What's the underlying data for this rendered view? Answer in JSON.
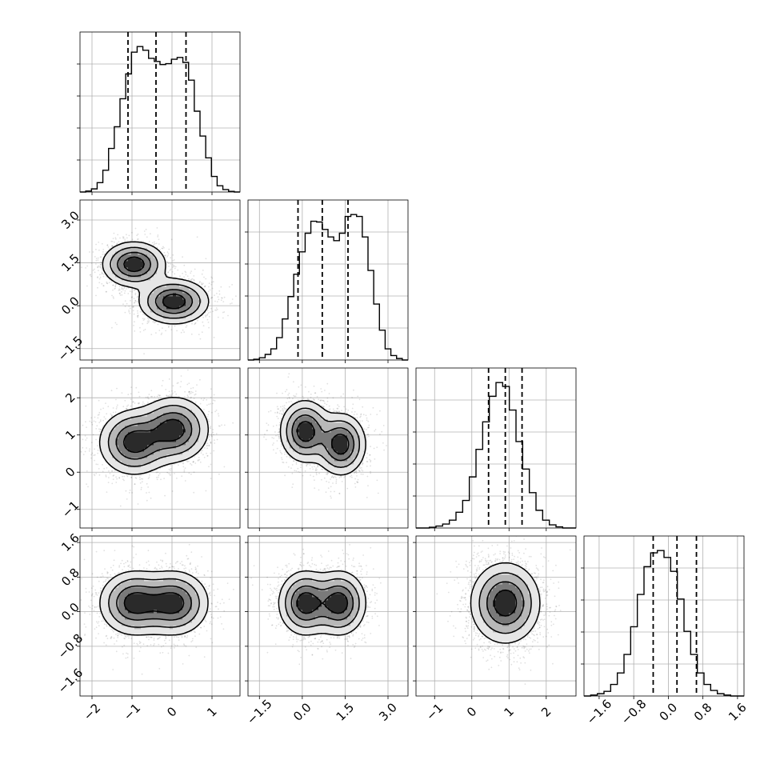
{
  "chart_data": {
    "type": "corner",
    "n_params": 4,
    "labels": [
      "",
      "",
      "",
      ""
    ],
    "grid": true,
    "params": [
      {
        "range": [
          -2.3,
          1.7
        ],
        "ticks": [
          -2,
          -1,
          0,
          1
        ],
        "tick_labels": [
          "−2",
          "−1",
          "0",
          "1"
        ],
        "quantiles": [
          -1.1,
          -0.4,
          0.35
        ]
      },
      {
        "range": [
          -1.9,
          3.7
        ],
        "ticks": [
          -1.5,
          0.0,
          1.5,
          3.0
        ],
        "tick_labels": [
          "−1.5",
          "0.0",
          "1.5",
          "3.0"
        ],
        "quantiles": [
          -0.15,
          0.7,
          1.6
        ]
      },
      {
        "range": [
          -1.5,
          2.8
        ],
        "ticks": [
          -1,
          0,
          1,
          2
        ],
        "tick_labels": [
          "−1",
          "0",
          "1",
          "2"
        ],
        "quantiles": [
          0.45,
          0.9,
          1.35
        ]
      },
      {
        "range": [
          -1.95,
          1.75
        ],
        "ticks": [
          -1.6,
          -0.8,
          0.0,
          0.8,
          1.6
        ],
        "tick_labels": [
          "−1.6",
          "−0.8",
          "0.0",
          "0.8",
          "1.6"
        ],
        "quantiles": [
          -0.35,
          0.2,
          0.65
        ]
      }
    ],
    "histograms": [
      {
        "param": 0,
        "counts": [
          0.0,
          0.3,
          1.0,
          3.0,
          7.0,
          14.0,
          21.0,
          30.0,
          38.0,
          45.0,
          46.8,
          45.6,
          43.0,
          42.0,
          41.0,
          41.3,
          42.7,
          43.3,
          41.7,
          36.0,
          26.0,
          18.0,
          11.0,
          5.0,
          2.0,
          0.8,
          0.2,
          0.0
        ]
      },
      {
        "param": 1,
        "counts": [
          0.0,
          0.2,
          0.6,
          1.5,
          3.0,
          6.0,
          11.0,
          17.0,
          23.0,
          29.0,
          34.0,
          37.2,
          37.0,
          35.0,
          33.0,
          32.0,
          34.0,
          38.5,
          39.0,
          38.5,
          33.0,
          24.0,
          15.0,
          8.0,
          3.0,
          1.2,
          0.4,
          0.0
        ]
      },
      {
        "param": 2,
        "counts": [
          0.0,
          0.0,
          0.2,
          0.5,
          1.0,
          2.0,
          4.0,
          7.0,
          13.0,
          20.0,
          27.0,
          33.5,
          37.0,
          36.0,
          30.0,
          22.0,
          15.0,
          9.0,
          4.5,
          2.0,
          0.8,
          0.3,
          0.0,
          0.0
        ]
      },
      {
        "param": 3,
        "counts": [
          0.0,
          0.2,
          0.5,
          1.0,
          2.5,
          5.0,
          9.0,
          15.0,
          22.0,
          28.0,
          31.0,
          31.5,
          30.0,
          27.0,
          21.0,
          14.0,
          9.0,
          5.0,
          2.5,
          1.2,
          0.5,
          0.2,
          0.0,
          0.0
        ]
      }
    ],
    "pairs": [
      {
        "x_param": 0,
        "y_param": 1,
        "modes": [
          {
            "x": -0.95,
            "y": 1.45,
            "sx": 0.38,
            "sy": 0.38,
            "rho": 0.0
          },
          {
            "x": 0.05,
            "y": 0.15,
            "sx": 0.42,
            "sy": 0.38,
            "rho": 0.0
          }
        ]
      },
      {
        "x_param": 0,
        "y_param": 2,
        "modes": [
          {
            "x": -0.95,
            "y": 0.8,
            "sx": 0.42,
            "sy": 0.42,
            "rho": 0.0
          },
          {
            "x": 0.05,
            "y": 1.15,
            "sx": 0.42,
            "sy": 0.42,
            "rho": 0.0
          }
        ]
      },
      {
        "x_param": 1,
        "y_param": 2,
        "modes": [
          {
            "x": 0.1,
            "y": 1.1,
            "sx": 0.42,
            "sy": 0.4,
            "rho": 0.0
          },
          {
            "x": 1.35,
            "y": 0.75,
            "sx": 0.42,
            "sy": 0.4,
            "rho": 0.0
          }
        ]
      },
      {
        "x_param": 0,
        "y_param": 3,
        "modes": [
          {
            "x": -0.95,
            "y": 0.2,
            "sx": 0.42,
            "sy": 0.36,
            "rho": 0.0
          },
          {
            "x": 0.05,
            "y": 0.2,
            "sx": 0.42,
            "sy": 0.36,
            "rho": 0.0
          }
        ]
      },
      {
        "x_param": 1,
        "y_param": 3,
        "modes": [
          {
            "x": 0.1,
            "y": 0.2,
            "sx": 0.45,
            "sy": 0.36,
            "rho": 0.0
          },
          {
            "x": 1.3,
            "y": 0.2,
            "sx": 0.45,
            "sy": 0.36,
            "rho": 0.0
          }
        ]
      },
      {
        "x_param": 2,
        "y_param": 3,
        "modes": [
          {
            "x": 0.9,
            "y": 0.2,
            "sx": 0.45,
            "sy": 0.45,
            "rho": 0.0
          }
        ]
      }
    ]
  }
}
